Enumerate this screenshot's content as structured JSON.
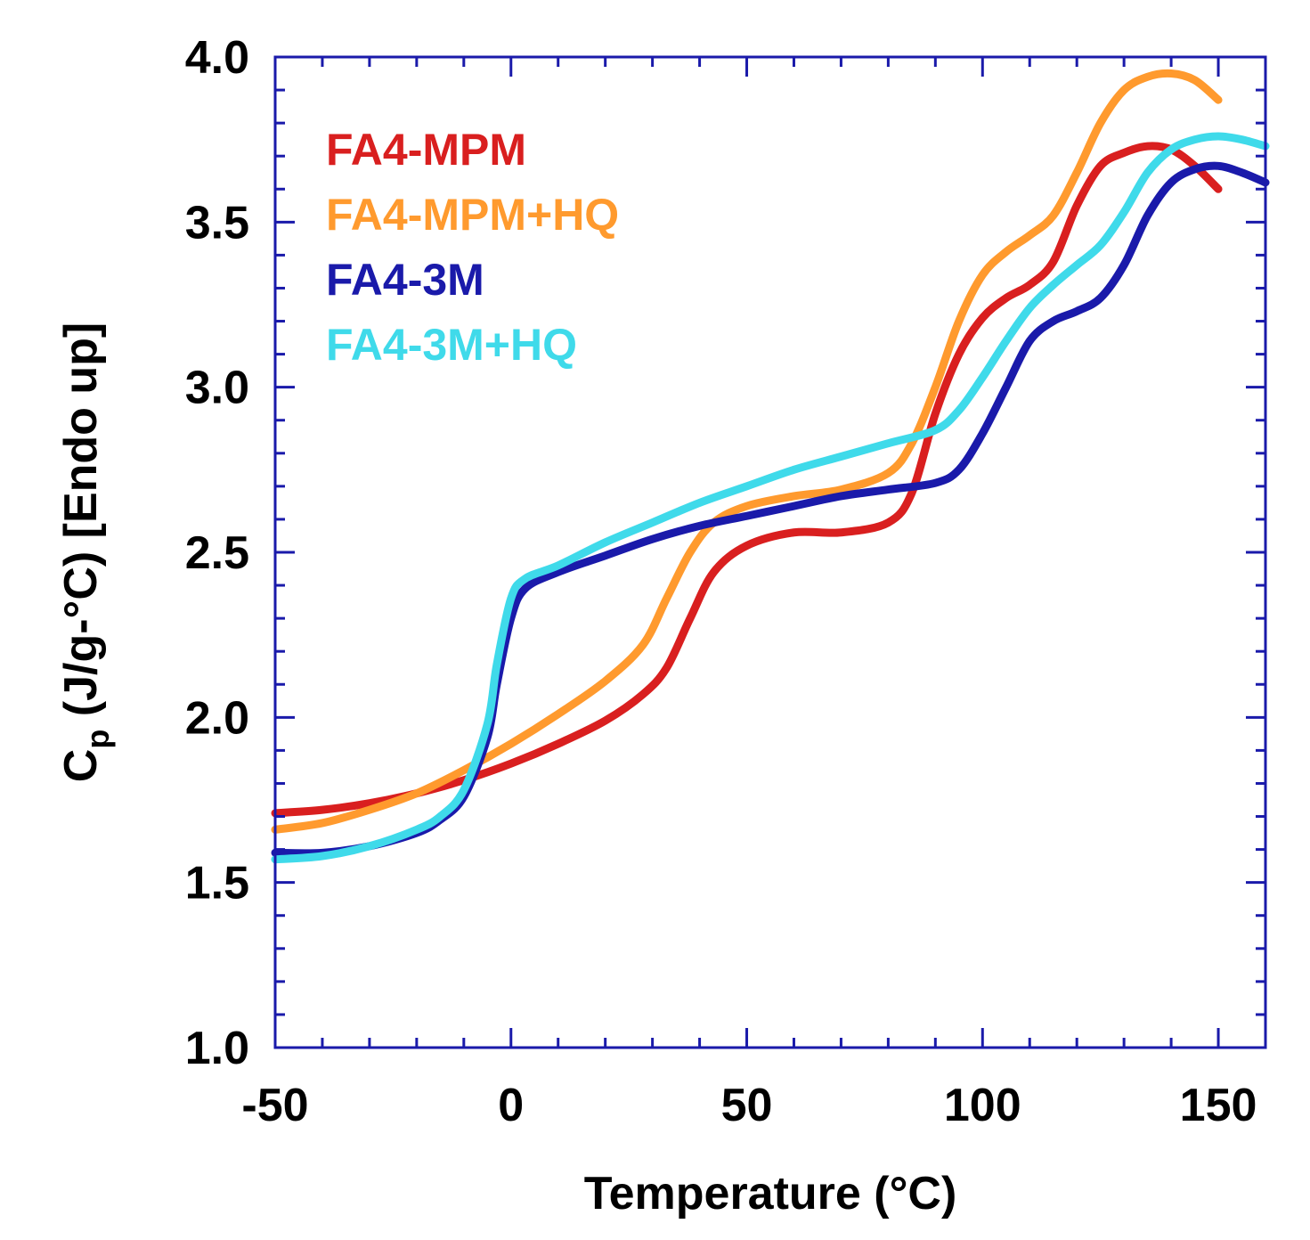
{
  "chart_data": {
    "type": "line",
    "title": "",
    "xlabel": "Temperature (°C)",
    "ylabel": {
      "symbol": "C",
      "subscript": "p",
      "rest": " (J/g-°C) [Endo up]"
    },
    "xlim": [
      -50,
      160
    ],
    "ylim": [
      1.0,
      4.0
    ],
    "x_ticks": [
      -50,
      0,
      50,
      100,
      150
    ],
    "x_tick_labels": [
      "-50",
      "0",
      "50",
      "100",
      "150"
    ],
    "x_minor_step": 10,
    "y_ticks": [
      1.0,
      1.5,
      2.0,
      2.5,
      3.0,
      3.5,
      4.0
    ],
    "y_tick_labels": [
      "1.0",
      "1.5",
      "2.0",
      "2.5",
      "3.0",
      "3.5",
      "4.0"
    ],
    "y_minor_step": 0.1,
    "axis_color": "#1a1aaa",
    "grid": false,
    "legend_position": "top-left",
    "series": [
      {
        "name": "FA4-MPM",
        "color": "#d91f1f",
        "x": [
          -50,
          -40,
          -30,
          -20,
          -10,
          0,
          10,
          20,
          28,
          33,
          38,
          43,
          50,
          60,
          70,
          80,
          85,
          90,
          95,
          100,
          105,
          110,
          115,
          120,
          125,
          130,
          135,
          140,
          145,
          150
        ],
        "y": [
          1.71,
          1.72,
          1.74,
          1.77,
          1.81,
          1.86,
          1.92,
          1.99,
          2.07,
          2.15,
          2.3,
          2.44,
          2.52,
          2.56,
          2.56,
          2.59,
          2.68,
          2.92,
          3.1,
          3.21,
          3.27,
          3.31,
          3.38,
          3.55,
          3.67,
          3.71,
          3.73,
          3.72,
          3.67,
          3.6
        ]
      },
      {
        "name": "FA4-MPM+HQ",
        "color": "#ff9a2e",
        "x": [
          -50,
          -40,
          -30,
          -20,
          -10,
          0,
          10,
          20,
          28,
          33,
          38,
          43,
          50,
          60,
          70,
          80,
          85,
          90,
          95,
          100,
          105,
          110,
          115,
          120,
          125,
          130,
          135,
          140,
          145,
          150
        ],
        "y": [
          1.66,
          1.68,
          1.72,
          1.77,
          1.84,
          1.92,
          2.01,
          2.11,
          2.22,
          2.36,
          2.5,
          2.59,
          2.64,
          2.67,
          2.69,
          2.74,
          2.83,
          3.0,
          3.2,
          3.34,
          3.41,
          3.46,
          3.52,
          3.65,
          3.8,
          3.9,
          3.94,
          3.95,
          3.93,
          3.87
        ]
      },
      {
        "name": "FA4-3M",
        "color": "#1a1aaa",
        "x": [
          -50,
          -40,
          -30,
          -20,
          -15,
          -10,
          -5,
          -3,
          0,
          3,
          10,
          20,
          30,
          40,
          50,
          60,
          70,
          80,
          90,
          95,
          100,
          105,
          110,
          115,
          120,
          125,
          130,
          135,
          140,
          145,
          150,
          155,
          160
        ],
        "y": [
          1.59,
          1.59,
          1.61,
          1.65,
          1.69,
          1.76,
          1.94,
          2.1,
          2.3,
          2.39,
          2.44,
          2.49,
          2.54,
          2.58,
          2.61,
          2.64,
          2.67,
          2.69,
          2.71,
          2.75,
          2.86,
          3.0,
          3.14,
          3.2,
          3.23,
          3.27,
          3.37,
          3.52,
          3.62,
          3.66,
          3.67,
          3.65,
          3.62
        ]
      },
      {
        "name": "FA4-3M+HQ",
        "color": "#3fdaea",
        "x": [
          -50,
          -40,
          -30,
          -20,
          -15,
          -10,
          -5,
          -3,
          0,
          3,
          10,
          20,
          30,
          40,
          50,
          60,
          70,
          80,
          90,
          95,
          100,
          105,
          110,
          115,
          120,
          125,
          130,
          135,
          140,
          145,
          150,
          155,
          160
        ],
        "y": [
          1.57,
          1.58,
          1.61,
          1.66,
          1.7,
          1.78,
          1.98,
          2.16,
          2.36,
          2.42,
          2.46,
          2.53,
          2.59,
          2.65,
          2.7,
          2.75,
          2.79,
          2.83,
          2.87,
          2.93,
          3.03,
          3.14,
          3.24,
          3.31,
          3.37,
          3.43,
          3.53,
          3.65,
          3.72,
          3.75,
          3.76,
          3.75,
          3.73
        ]
      }
    ]
  }
}
